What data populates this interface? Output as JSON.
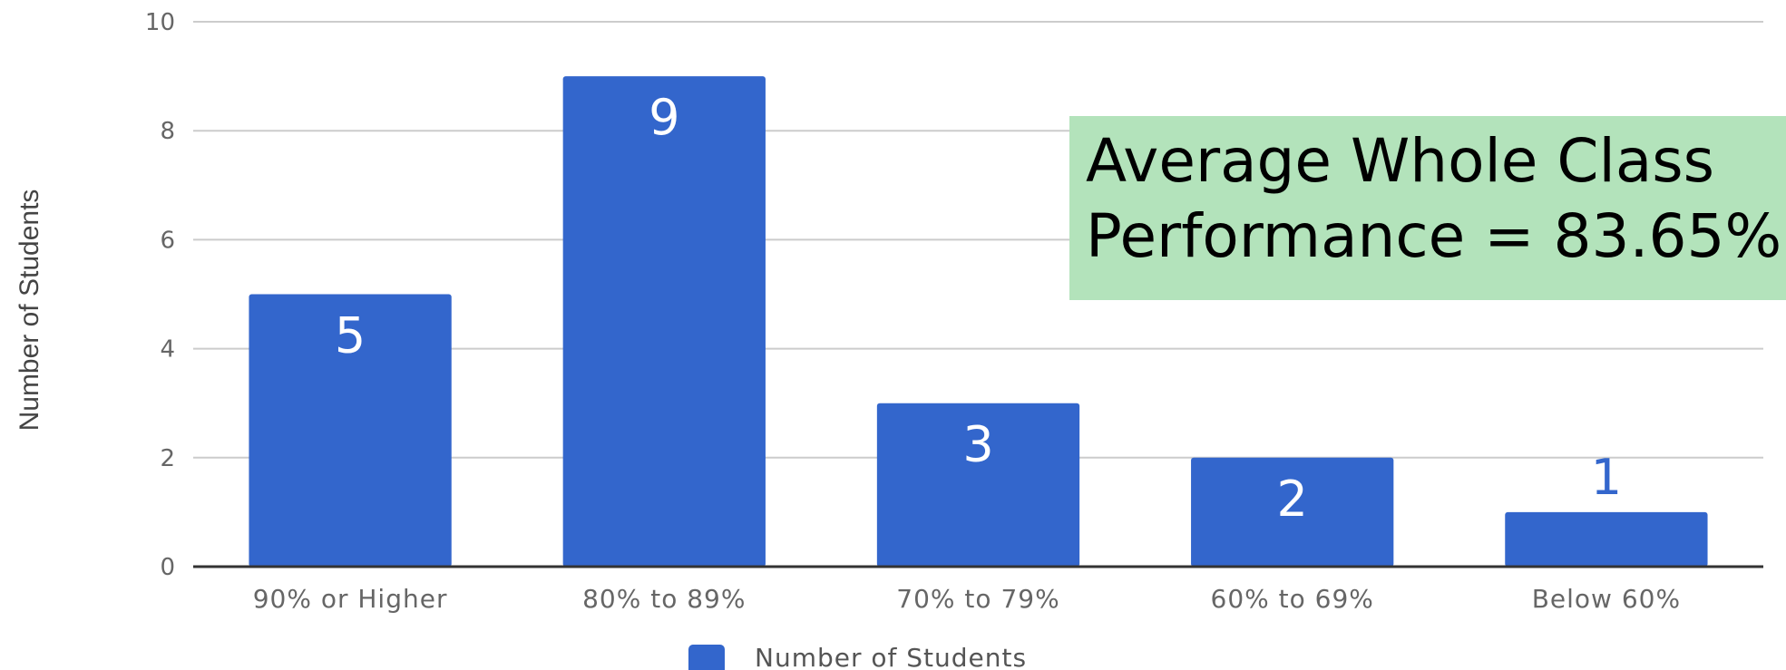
{
  "chart_data": {
    "type": "bar",
    "categories": [
      "90% or Higher",
      "80% to 89%",
      "70% to 79%",
      "60% to 69%",
      "Below 60%"
    ],
    "series": [
      {
        "name": "Number of Students",
        "values": [
          5,
          9,
          3,
          2,
          1
        ]
      }
    ],
    "ylabel": "Number of Students",
    "ylim": [
      0,
      10
    ],
    "yticks": [
      0,
      2,
      4,
      6,
      8,
      10
    ],
    "grid": true,
    "legend": "bottom",
    "bar_color": "#3366cc",
    "data_label_color_inside": "#ffffff",
    "data_label_color_outside": "#3366cc",
    "annotation_lines": [
      "Average Whole Class",
      "Performance = 83.65%"
    ],
    "annotation_color": "#b3e3bb"
  }
}
